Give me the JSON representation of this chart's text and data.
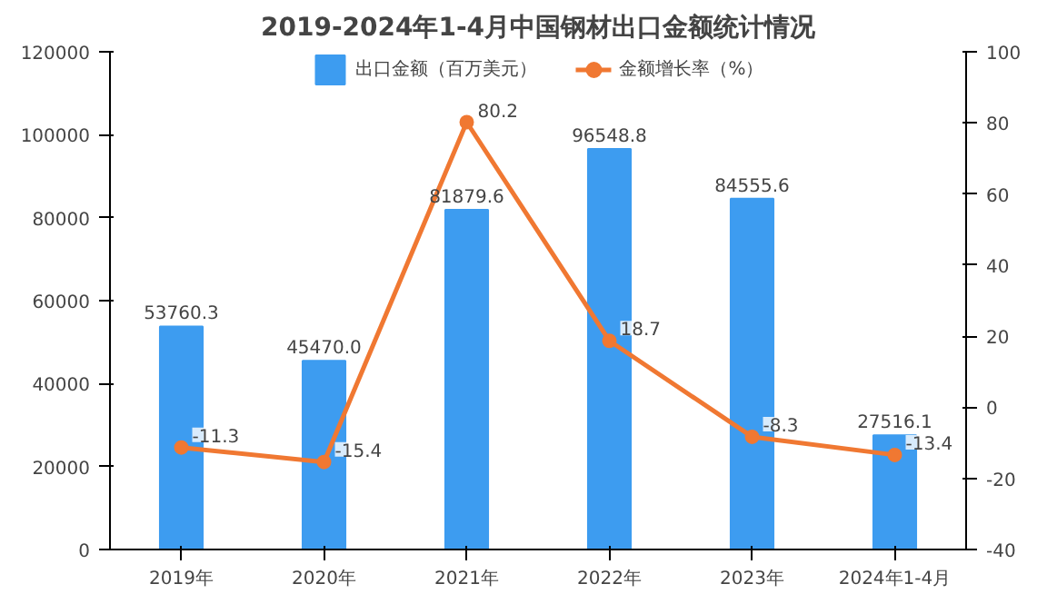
{
  "chart_data": {
    "type": "bar",
    "title": "2019-2024年1-4月中国钢材出口金额统计情况",
    "categories": [
      "2019年",
      "2020年",
      "2021年",
      "2022年",
      "2023年",
      "2024年1-4月"
    ],
    "series": [
      {
        "name": "出口金额（百万美元）",
        "color": "#3d9cf0",
        "values": [
          53760.3,
          45470.0,
          81879.6,
          96548.8,
          84555.6,
          27516.1
        ],
        "value_labels": [
          "53760.3",
          "45470.0",
          "81879.6",
          "96548.8",
          "84555.6",
          "27516.1"
        ]
      },
      {
        "name": "金额增长率（%）",
        "type": "line",
        "axis": "y2",
        "color": "#f07832",
        "marker": "circle",
        "values": [
          -11.3,
          -15.4,
          80.2,
          18.7,
          -8.3,
          -13.4
        ],
        "value_labels": [
          "-11.3",
          "-15.4",
          "80.2",
          "18.7",
          "-8.3",
          "-13.4"
        ]
      }
    ],
    "ylim": [
      0,
      120000
    ],
    "yticks": [
      0,
      20000,
      40000,
      60000,
      80000,
      100000,
      120000
    ],
    "y2lim": [
      -40,
      100
    ],
    "y2ticks": [
      -40,
      -20,
      0,
      20,
      40,
      60,
      80,
      100
    ],
    "grid": false,
    "legend": "top"
  }
}
